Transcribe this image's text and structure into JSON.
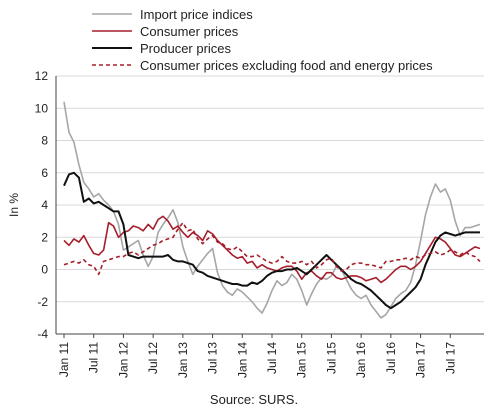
{
  "chart_data": {
    "type": "line",
    "title": "",
    "ylabel": "In %",
    "xlabel": "",
    "ylim": [
      -4,
      12
    ],
    "yticks": [
      -4,
      -2,
      0,
      2,
      4,
      6,
      8,
      10,
      12
    ],
    "x_tick_labels": [
      "Jan 11",
      "Jul 11",
      "Jan 12",
      "Jul 12",
      "Jan 13",
      "Jul 13",
      "Jan 14",
      "Jul 14",
      "Jan 15",
      "Jul 15",
      "Jan 16",
      "Jul 16",
      "Jan 17",
      "Jul 17"
    ],
    "x_start": "2011-01",
    "x_end": "2017-11",
    "grid": "horizontal",
    "legend_position": "top",
    "source": "Source: SURS.",
    "series": [
      {
        "name": "Import price indices",
        "color": "#a6a6a6",
        "style": "solid",
        "values": [
          10.4,
          8.5,
          7.9,
          6.5,
          5.4,
          5.0,
          4.5,
          4.7,
          4.3,
          4.0,
          3.6,
          2.8,
          1.2,
          1.4,
          1.6,
          1.8,
          0.9,
          0.2,
          0.8,
          2.3,
          2.8,
          3.2,
          3.7,
          2.9,
          1.4,
          0.5,
          -0.3,
          0.2,
          0.6,
          1.0,
          1.3,
          -0.2,
          -1.0,
          -1.4,
          -1.6,
          -1.2,
          -1.4,
          -1.7,
          -2.0,
          -2.4,
          -2.7,
          -2.1,
          -1.3,
          -0.7,
          -1.0,
          -0.8,
          -0.3,
          -0.6,
          -1.3,
          -2.2,
          -1.5,
          -0.9,
          -0.5,
          -0.6,
          -0.4,
          0.2,
          0.0,
          -0.6,
          -1.2,
          -1.6,
          -1.8,
          -1.6,
          -2.2,
          -2.6,
          -3.0,
          -2.8,
          -2.3,
          -1.8,
          -1.5,
          -1.3,
          -0.8,
          0.3,
          1.8,
          3.4,
          4.5,
          5.3,
          4.8,
          5.0,
          4.3,
          3.0,
          2.1,
          2.6,
          2.6,
          2.7,
          2.8
        ]
      },
      {
        "name": "Consumer prices",
        "color": "#a61e2b",
        "style": "solid",
        "values": [
          1.8,
          1.5,
          1.9,
          1.7,
          2.1,
          1.5,
          1.0,
          0.9,
          1.2,
          2.9,
          2.7,
          2.0,
          2.3,
          2.4,
          2.7,
          2.6,
          2.4,
          2.8,
          2.5,
          3.1,
          3.3,
          3.0,
          2.5,
          2.7,
          2.3,
          2.0,
          2.3,
          2.1,
          1.8,
          2.4,
          2.2,
          1.8,
          1.5,
          1.2,
          0.9,
          0.7,
          0.8,
          0.4,
          0.5,
          0.1,
          0.3,
          0.1,
          0.0,
          -0.1,
          0.1,
          0.2,
          0.2,
          -0.1,
          -0.6,
          -0.2,
          -0.1,
          -0.4,
          -0.6,
          -0.2,
          -0.2,
          -0.5,
          -0.6,
          -0.5,
          -0.4,
          -0.4,
          -0.5,
          -0.7,
          -0.6,
          -0.5,
          -0.8,
          -0.6,
          -0.3,
          0.0,
          0.2,
          0.2,
          0.0,
          0.2,
          0.5,
          1.0,
          1.5,
          2.0,
          1.9,
          1.7,
          1.3,
          0.9,
          0.8,
          1.0,
          1.2,
          1.4,
          1.3
        ]
      },
      {
        "name": "Producer prices",
        "color": "#111111",
        "style": "solid",
        "values": [
          5.2,
          5.9,
          6.0,
          5.7,
          4.2,
          4.4,
          4.1,
          4.2,
          4.0,
          3.8,
          3.6,
          3.6,
          2.8,
          0.9,
          0.8,
          0.7,
          0.8,
          0.8,
          0.8,
          0.8,
          0.8,
          0.9,
          0.6,
          0.5,
          0.5,
          0.4,
          0.3,
          -0.1,
          -0.2,
          -0.4,
          -0.5,
          -0.6,
          -0.7,
          -0.8,
          -0.9,
          -0.9,
          -1.0,
          -1.0,
          -0.8,
          -0.9,
          -0.7,
          -0.4,
          -0.2,
          -0.1,
          -0.1,
          0.0,
          0.0,
          0.1,
          -0.1,
          -0.3,
          0.0,
          0.3,
          0.6,
          0.9,
          0.6,
          0.3,
          0.0,
          -0.3,
          -0.6,
          -0.8,
          -0.9,
          -1.1,
          -1.3,
          -1.6,
          -1.9,
          -2.2,
          -2.4,
          -2.2,
          -2.0,
          -1.7,
          -1.4,
          -1.1,
          -0.6,
          0.3,
          1.0,
          1.7,
          2.1,
          2.3,
          2.2,
          2.1,
          2.2,
          2.3,
          2.3,
          2.3,
          2.3
        ]
      },
      {
        "name": "Consumer prices excluding food and energy prices",
        "color": "#a61e2b",
        "style": "dashed",
        "values": [
          0.3,
          0.4,
          0.5,
          0.4,
          0.6,
          0.3,
          0.2,
          -0.3,
          0.5,
          0.6,
          0.7,
          0.8,
          0.8,
          1.0,
          1.1,
          0.9,
          1.1,
          1.3,
          1.5,
          1.6,
          1.8,
          1.9,
          2.0,
          2.5,
          2.9,
          2.4,
          2.5,
          1.9,
          1.6,
          1.9,
          2.1,
          1.7,
          1.6,
          1.3,
          1.2,
          1.4,
          1.1,
          0.8,
          0.8,
          0.9,
          0.7,
          0.5,
          0.4,
          0.5,
          0.8,
          0.5,
          0.4,
          0.4,
          0.5,
          0.3,
          0.5,
          0.1,
          0.3,
          0.6,
          0.7,
          0.2,
          -0.1,
          0.0,
          0.3,
          0.4,
          0.4,
          0.3,
          0.3,
          0.2,
          0.1,
          0.5,
          0.5,
          0.6,
          0.6,
          0.7,
          0.6,
          0.8,
          0.7,
          0.9,
          1.0,
          1.1,
          0.9,
          1.0,
          1.2,
          1.1,
          0.9,
          1.1,
          0.9,
          0.8,
          0.5
        ]
      }
    ]
  }
}
